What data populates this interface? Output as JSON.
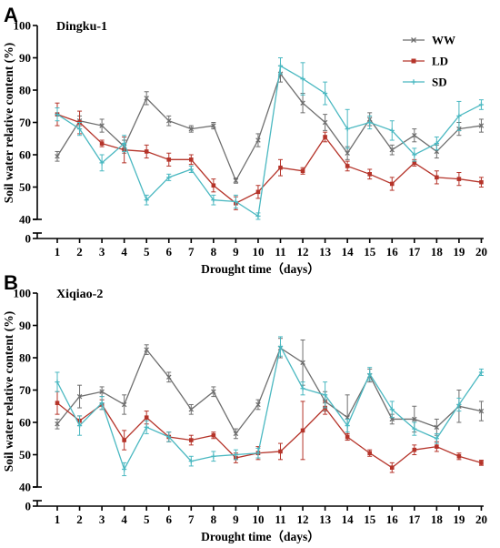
{
  "chart_data": [
    {
      "type": "line",
      "panel_label": "A",
      "title": "Dingku-1",
      "xlabel": "Drought time（days）",
      "ylabel": "Soil water relative content (%)",
      "x": [
        1,
        2,
        3,
        4,
        5,
        6,
        7,
        8,
        9,
        10,
        11,
        12,
        13,
        14,
        15,
        16,
        17,
        18,
        19,
        20
      ],
      "ylim": [
        0,
        100
      ],
      "axis_break": [
        10,
        40
      ],
      "yticks": [
        0,
        40,
        50,
        60,
        70,
        80,
        90,
        100
      ],
      "yticklabels": [
        "0",
        "40",
        "50",
        "60",
        "70",
        "80",
        "90",
        "100"
      ],
      "grid": false,
      "legend_position": "top-right",
      "series": [
        {
          "name": "WW",
          "color": "#6e6e6e",
          "values": [
            59.5,
            70.5,
            69,
            62.5,
            77.5,
            70.5,
            68,
            69,
            52,
            64.5,
            85,
            76,
            70,
            60.5,
            71,
            61.5,
            66,
            61,
            68,
            69
          ],
          "errors": [
            1.5,
            1.5,
            2,
            2,
            2,
            1.5,
            1,
            1,
            0.8,
            2,
            2.5,
            3,
            2.5,
            2,
            2,
            1.5,
            2,
            2,
            2,
            2
          ]
        },
        {
          "name": "LD",
          "color": "#b5342a",
          "values": [
            72.5,
            70,
            63.5,
            61.5,
            61,
            58.5,
            58.5,
            50.5,
            45,
            48.5,
            56,
            55,
            65.5,
            56.5,
            54,
            51,
            57.5,
            53,
            52.5,
            51.5
          ],
          "errors": [
            3.5,
            3.5,
            1,
            4,
            2,
            2,
            1.5,
            2,
            2,
            2,
            2.5,
            1,
            1.5,
            1.5,
            1.5,
            2,
            1,
            2,
            2,
            1.5
          ]
        },
        {
          "name": "SD",
          "color": "#4ab8c1",
          "values": [
            72.5,
            68,
            57.5,
            63.5,
            46,
            53,
            55.5,
            46,
            45.5,
            41,
            87.5,
            83.5,
            79,
            68,
            70,
            67.5,
            60,
            63.5,
            72,
            75.5
          ],
          "errors": [
            2,
            2,
            2.5,
            2.5,
            1.5,
            1,
            1,
            1.5,
            2,
            1,
            2.5,
            5,
            3.5,
            6,
            2,
            3,
            2,
            2,
            4.5,
            1.5
          ]
        }
      ]
    },
    {
      "type": "line",
      "panel_label": "B",
      "title": "Xiqiao-2",
      "xlabel": "Drought time（days）",
      "ylabel": "Soil water relative content (%)",
      "x": [
        1,
        2,
        3,
        4,
        5,
        6,
        7,
        8,
        9,
        10,
        11,
        12,
        13,
        14,
        15,
        16,
        17,
        18,
        19,
        20
      ],
      "ylim": [
        0,
        100
      ],
      "axis_break": [
        10,
        40
      ],
      "yticks": [
        0,
        40,
        50,
        60,
        70,
        80,
        90,
        100
      ],
      "yticklabels": [
        "0",
        "40",
        "50",
        "60",
        "70",
        "80",
        "90",
        "100"
      ],
      "grid": false,
      "series": [
        {
          "name": "WW",
          "color": "#6e6e6e",
          "values": [
            59.5,
            68,
            69.5,
            65.5,
            82.5,
            74,
            64,
            69.5,
            56.5,
            65.5,
            83,
            78.5,
            66.5,
            61.5,
            74.5,
            61,
            61,
            58.5,
            65,
            63.5
          ],
          "errors": [
            1.5,
            3.5,
            1.5,
            3,
            1.5,
            1.5,
            1.5,
            1.5,
            1.5,
            1.5,
            3,
            7,
            3,
            7,
            2,
            1.5,
            4,
            2.5,
            5,
            3
          ]
        },
        {
          "name": "LD",
          "color": "#b5342a",
          "values": [
            66,
            60.5,
            65.5,
            54.5,
            61.5,
            55.5,
            54.5,
            56,
            49,
            50.5,
            51,
            57.5,
            64.5,
            55.5,
            50.5,
            46,
            51.5,
            52.5,
            49.5,
            47.5
          ],
          "errors": [
            3.5,
            1.5,
            1.5,
            3,
            2,
            1.5,
            1.5,
            1,
            1.5,
            2,
            2.5,
            9,
            2,
            1,
            1,
            1.5,
            1.5,
            1.5,
            1,
            0.8
          ]
        },
        {
          "name": "SD",
          "color": "#4ab8c1",
          "values": [
            72.5,
            59,
            66,
            45.5,
            58.5,
            55.5,
            48,
            49.5,
            50,
            50.5,
            83.5,
            70.5,
            68.5,
            59,
            75,
            64,
            58,
            55,
            65.5,
            75.5
          ],
          "errors": [
            3,
            3,
            2,
            2,
            2,
            1.5,
            1.5,
            1.5,
            1.5,
            1.5,
            3,
            2,
            4,
            2,
            2,
            2.5,
            2,
            1.5,
            2,
            1
          ]
        }
      ]
    }
  ]
}
